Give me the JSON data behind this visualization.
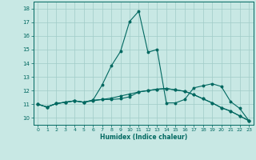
{
  "background_color": "#c8e8e4",
  "grid_color": "#a0ccc8",
  "line_color": "#006860",
  "xlabel": "Humidex (Indice chaleur)",
  "xlim": [
    -0.5,
    23.5
  ],
  "ylim": [
    9.5,
    18.5
  ],
  "xticks": [
    0,
    1,
    2,
    3,
    4,
    5,
    6,
    7,
    8,
    9,
    10,
    11,
    12,
    13,
    14,
    15,
    16,
    17,
    18,
    19,
    20,
    21,
    22,
    23
  ],
  "yticks": [
    10,
    11,
    12,
    13,
    14,
    15,
    16,
    17,
    18
  ],
  "line1_y": [
    11.0,
    10.8,
    11.05,
    11.15,
    11.25,
    11.15,
    11.3,
    11.35,
    11.45,
    11.6,
    11.75,
    11.9,
    12.0,
    12.1,
    12.15,
    12.05,
    11.95,
    11.7,
    11.4,
    11.1,
    10.75,
    10.5,
    10.15,
    9.8
  ],
  "line2_y": [
    11.0,
    10.8,
    11.05,
    11.15,
    11.25,
    11.15,
    11.25,
    11.35,
    11.35,
    11.4,
    11.55,
    11.9,
    12.0,
    12.1,
    12.15,
    12.05,
    11.95,
    11.7,
    11.4,
    11.1,
    10.75,
    10.5,
    10.15,
    9.8
  ],
  "line3_y": [
    11.0,
    10.8,
    11.05,
    11.15,
    11.25,
    11.15,
    11.3,
    12.4,
    13.8,
    14.85,
    17.05,
    17.8,
    14.8,
    15.0,
    11.1,
    11.1,
    11.35,
    12.2,
    12.35,
    12.5,
    12.3,
    11.2,
    10.7,
    9.8
  ]
}
